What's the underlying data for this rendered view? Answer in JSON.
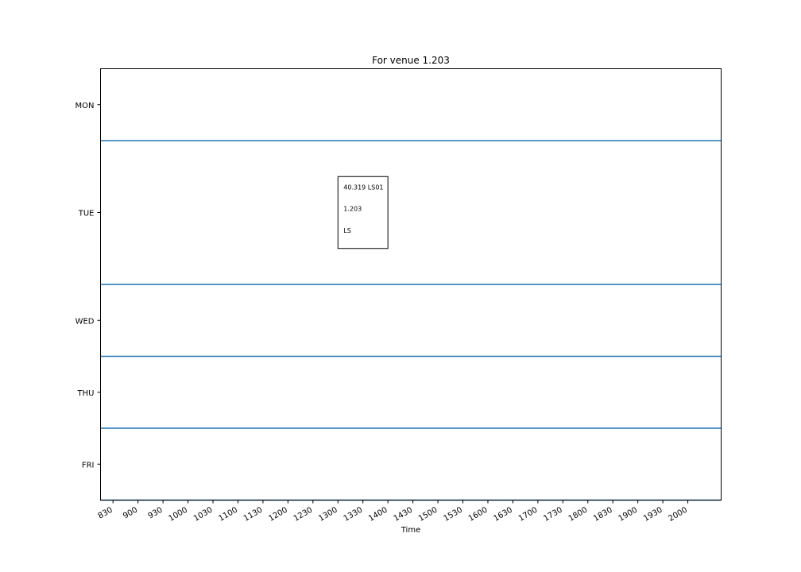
{
  "chart_data": {
    "type": "timetable",
    "title": "For venue 1.203",
    "xlabel": "Time",
    "x_ticks": [
      "830",
      "900",
      "930",
      "1000",
      "1030",
      "1100",
      "1130",
      "1200",
      "1230",
      "1300",
      "1330",
      "1400",
      "1430",
      "1500",
      "1530",
      "1600",
      "1630",
      "1700",
      "1730",
      "1800",
      "1830",
      "1900",
      "1930",
      "2000"
    ],
    "days": [
      "MON",
      "TUE",
      "WED",
      "THU",
      "FRI"
    ],
    "day_rows": [
      1,
      2,
      1,
      1,
      1
    ],
    "line_color": "#1f77b4",
    "grid": false,
    "events": [
      {
        "day": "TUE",
        "start": "1300",
        "end": "1400",
        "lines": [
          "40.319 LS01",
          "1.203",
          "LS"
        ]
      }
    ]
  }
}
